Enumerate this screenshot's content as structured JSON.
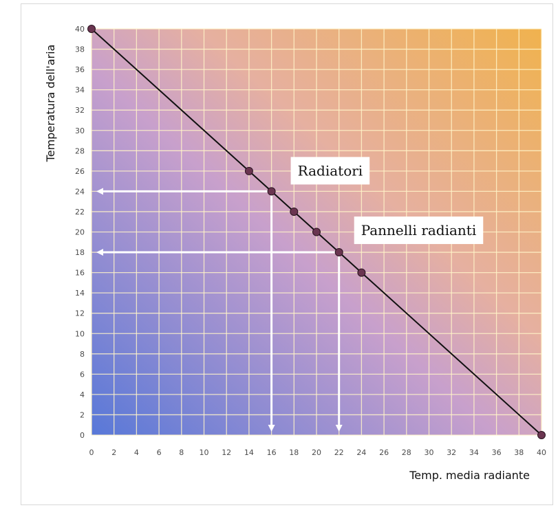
{
  "chart_data": {
    "type": "line",
    "xlabel": "Temp. media radiante",
    "ylabel": "Temperatura dell'aria",
    "xlim": [
      0,
      40
    ],
    "ylim": [
      0,
      40
    ],
    "x_ticks": [
      0,
      2,
      4,
      6,
      8,
      10,
      12,
      14,
      16,
      18,
      20,
      22,
      24,
      26,
      28,
      30,
      32,
      34,
      36,
      38,
      40
    ],
    "y_ticks": [
      0,
      2,
      4,
      6,
      8,
      10,
      12,
      14,
      16,
      18,
      20,
      22,
      24,
      26,
      28,
      30,
      32,
      34,
      36,
      38,
      40
    ],
    "grid": true,
    "background": {
      "gradient_from": "#5878d8",
      "gradient_to": "#f0b24e"
    },
    "series": [
      {
        "points": [
          {
            "x": 0,
            "y": 40
          },
          {
            "x": 14,
            "y": 26
          },
          {
            "x": 16,
            "y": 24
          },
          {
            "x": 18,
            "y": 22
          },
          {
            "x": 20,
            "y": 20
          },
          {
            "x": 22,
            "y": 18
          },
          {
            "x": 24,
            "y": 16
          },
          {
            "x": 40,
            "y": 0
          }
        ],
        "color": "#111111",
        "marker_color": "#6a3550"
      }
    ],
    "annotations": [
      {
        "label": "Radiatori",
        "x": 16,
        "y": 24
      },
      {
        "label": "Pannelli radianti",
        "x": 22,
        "y": 18
      }
    ]
  }
}
